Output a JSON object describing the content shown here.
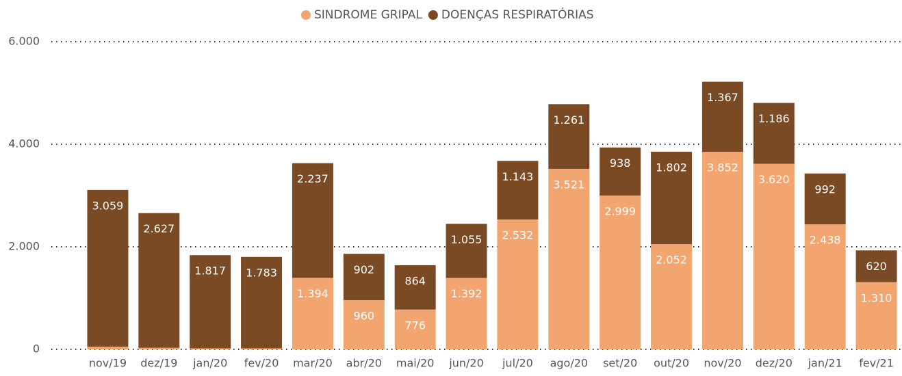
{
  "chart_data": {
    "type": "stacked_bar",
    "categories": [
      "nov/19",
      "dez/19",
      "jan/20",
      "fev/20",
      "mar/20",
      "abr/20",
      "mai/20",
      "jun/20",
      "jul/20",
      "ago/20",
      "set/20",
      "out/20",
      "nov/20",
      "dez/20",
      "jan/21",
      "fev/21"
    ],
    "series": [
      {
        "name": "SINDROME GRIPAL",
        "color": "#f2a56f",
        "values": [
          50,
          30,
          20,
          20,
          1394,
          960,
          776,
          1392,
          2532,
          3521,
          2999,
          2052,
          3852,
          3620,
          2438,
          1310
        ],
        "value_labels": [
          null,
          null,
          null,
          null,
          "1.394",
          "960",
          "776",
          "1.392",
          "2.532",
          "3.521",
          "2.999",
          "2.052",
          "3.852",
          "3.620",
          "2.438",
          "1.310"
        ]
      },
      {
        "name": "DOENÇAS RESPIRATÓRIAS",
        "color": "#7a4a25",
        "values": [
          3059,
          2627,
          1817,
          1783,
          2237,
          902,
          864,
          1055,
          1143,
          1261,
          938,
          1802,
          1367,
          1186,
          992,
          620
        ],
        "value_labels": [
          "3.059",
          "2.627",
          "1.817",
          "1.783",
          "2.237",
          "902",
          "864",
          "1.055",
          "1.143",
          "1.261",
          "938",
          "1.802",
          "1.367",
          "1.186",
          "992",
          "620"
        ]
      }
    ],
    "ylim": [
      0,
      6000
    ],
    "yticks": [
      0,
      {
        "value": 2000,
        "label": "2.000"
      },
      {
        "value": 4000,
        "label": "4.000"
      },
      {
        "value": 6000,
        "label": "6.000"
      }
    ],
    "grid": true,
    "legend": "top"
  }
}
